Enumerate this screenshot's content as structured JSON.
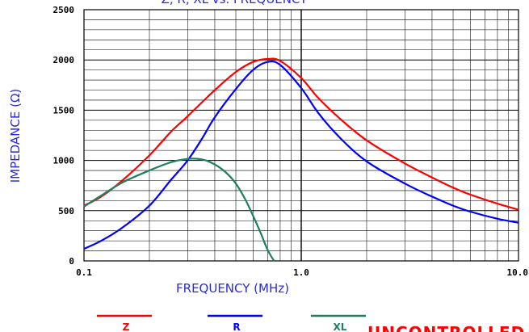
{
  "chart_data": {
    "type": "line",
    "title": "Z, R, XL vs. FREQUENCY",
    "xlabel": "FREQUENCY (MHz)",
    "ylabel": "IMPEDANCE (Ω)",
    "x_scale": "log",
    "xlim": [
      0.1,
      10.0
    ],
    "ylim": [
      0,
      2500
    ],
    "x_ticks": [
      "0.1",
      "1.0",
      "10.0"
    ],
    "y_ticks": [
      "0",
      "500",
      "1000",
      "1500",
      "2000",
      "2500"
    ],
    "grid": true,
    "legend_position": "bottom",
    "series": [
      {
        "name": "Z",
        "color": "#ff0000",
        "x": [
          0.1,
          0.12,
          0.15,
          0.2,
          0.25,
          0.3,
          0.4,
          0.5,
          0.6,
          0.7,
          0.8,
          1.0,
          1.2,
          1.5,
          2.0,
          3.0,
          4.0,
          5.0,
          6.0,
          8.0,
          10.0
        ],
        "y": [
          550,
          640,
          800,
          1050,
          1280,
          1440,
          1700,
          1880,
          1980,
          2010,
          1990,
          1820,
          1620,
          1420,
          1200,
          970,
          830,
          730,
          660,
          570,
          510
        ]
      },
      {
        "name": "R",
        "color": "#0000ff",
        "x": [
          0.1,
          0.12,
          0.15,
          0.2,
          0.25,
          0.3,
          0.35,
          0.4,
          0.5,
          0.6,
          0.7,
          0.8,
          1.0,
          1.2,
          1.5,
          2.0,
          3.0,
          4.0,
          5.0,
          6.0,
          8.0,
          10.0
        ],
        "y": [
          120,
          200,
          330,
          550,
          800,
          1000,
          1220,
          1430,
          1710,
          1900,
          1980,
          1950,
          1720,
          1470,
          1230,
          990,
          770,
          640,
          550,
          490,
          420,
          380
        ]
      },
      {
        "name": "XL",
        "color": "#1e8060",
        "x": [
          0.1,
          0.12,
          0.15,
          0.2,
          0.25,
          0.3,
          0.35,
          0.4,
          0.45,
          0.5,
          0.55,
          0.6,
          0.65,
          0.7,
          0.75
        ],
        "y": [
          540,
          650,
          780,
          900,
          980,
          1015,
          1010,
          960,
          880,
          770,
          620,
          450,
          280,
          110,
          0
        ]
      }
    ]
  },
  "stamp": "UNCONTROLLED"
}
